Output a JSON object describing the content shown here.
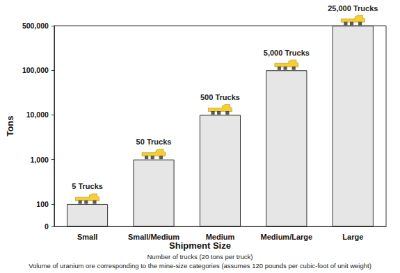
{
  "chart_data": {
    "type": "bar",
    "xlabel": "Shipment Size",
    "ylabel": "Tons",
    "notes": [
      "Number of trucks (20 tons per truck)",
      "Volume of uranium ore corresponding to the mine-size categories (assumes 120 pounds per cubic-foot of unit weight)"
    ],
    "categories": [
      "Small",
      "Small/Medium",
      "Medium",
      "Medium/Large",
      "Large"
    ],
    "values": [
      100,
      1000,
      10000,
      100000,
      500000
    ],
    "annotations": [
      "5 Trucks",
      "50 Trucks",
      "500 Trucks",
      "5,000 Trucks",
      "25,000 Trucks"
    ],
    "color": "#e6e6e6",
    "log": "y",
    "ylim": [
      0,
      500000
    ],
    "yticks": [
      0,
      100,
      {
        "value": 1000,
        "label": "1,000"
      },
      {
        "value": 10000,
        "label": "10,000"
      },
      {
        "value": 100000,
        "label": "100,000"
      },
      {
        "value": 500000,
        "label": "500,000"
      }
    ],
    "grid": false
  }
}
